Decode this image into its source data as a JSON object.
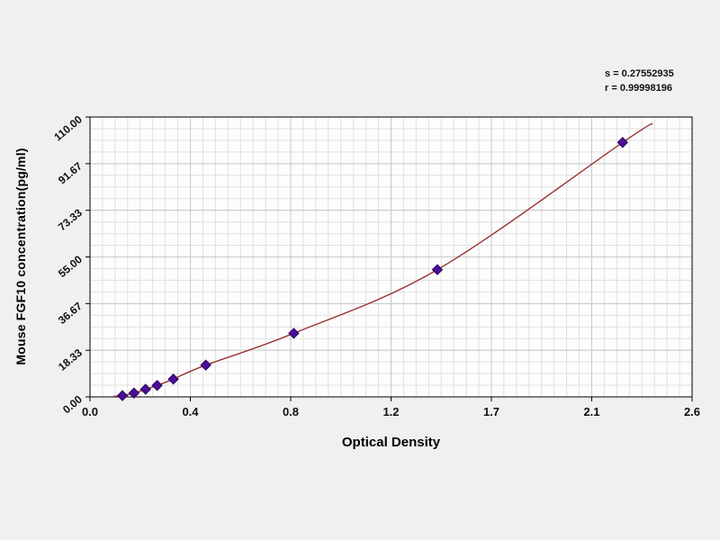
{
  "stats": {
    "s_line": "s = 0.27552935",
    "r_line": "r = 0.99998196"
  },
  "chart_data": {
    "type": "scatter",
    "title": "",
    "xlabel": "Optical Density",
    "ylabel": "Mouse FGF10 concentration(pg/ml)",
    "xlim": [
      0,
      2.6
    ],
    "ylim": [
      0,
      110
    ],
    "x_ticks": [
      "0.0",
      "0.4",
      "0.8",
      "1.2",
      "1.7",
      "2.1",
      "2.6"
    ],
    "y_ticks": [
      "0.00",
      "18.33",
      "36.67",
      "55.00",
      "73.33",
      "91.67",
      "110.00"
    ],
    "grid": true,
    "legend": "none",
    "points": [
      {
        "od": 0.14,
        "conc": 0.5
      },
      {
        "od": 0.19,
        "conc": 1.5
      },
      {
        "od": 0.24,
        "conc": 3.0
      },
      {
        "od": 0.29,
        "conc": 4.5
      },
      {
        "od": 0.36,
        "conc": 7.0
      },
      {
        "od": 0.5,
        "conc": 12.5
      },
      {
        "od": 0.88,
        "conc": 25.0
      },
      {
        "od": 1.5,
        "conc": 50.0
      },
      {
        "od": 2.3,
        "conc": 100.0
      }
    ],
    "curve": [
      {
        "od": 0.1,
        "conc": 0.2
      },
      {
        "od": 0.14,
        "conc": 0.5
      },
      {
        "od": 0.19,
        "conc": 1.5
      },
      {
        "od": 0.24,
        "conc": 3.0
      },
      {
        "od": 0.29,
        "conc": 4.5
      },
      {
        "od": 0.36,
        "conc": 7.0
      },
      {
        "od": 0.5,
        "conc": 12.5
      },
      {
        "od": 0.88,
        "conc": 25.0
      },
      {
        "od": 1.5,
        "conc": 50.0
      },
      {
        "od": 2.3,
        "conc": 100.0
      },
      {
        "od": 2.43,
        "conc": 107.5
      }
    ],
    "colors": {
      "plot_bg": "#fdfdfd",
      "grid_minor": "#e0e0e0",
      "grid_major": "#c9c9c9",
      "axis": "#000000",
      "curve": "#993333",
      "point_fill": "#4b0e9b",
      "point_edge": "#2a0757",
      "tick_text": "#111111"
    }
  }
}
